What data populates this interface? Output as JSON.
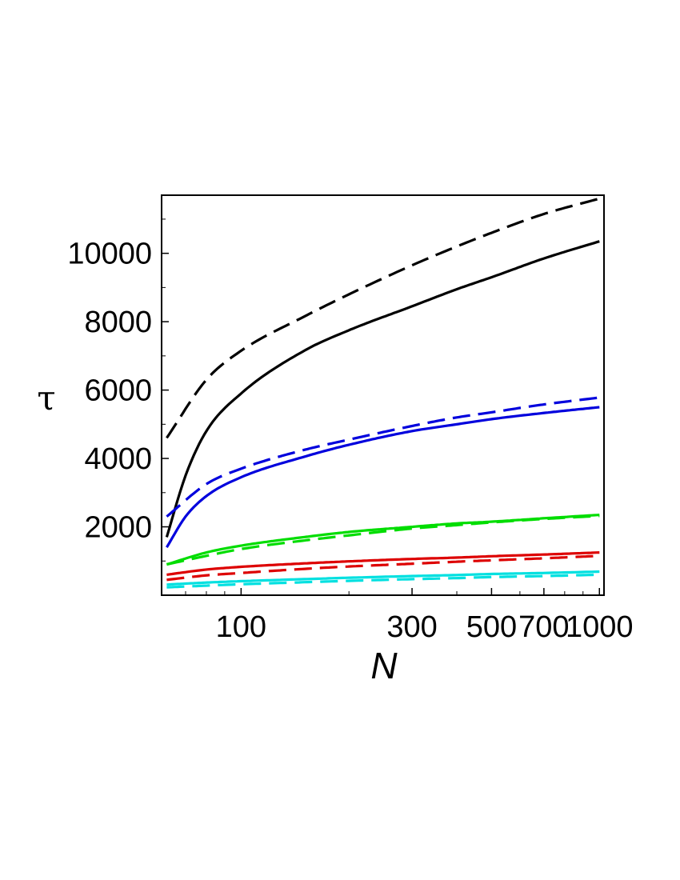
{
  "chart_data": {
    "type": "line",
    "title": "",
    "xlabel": "N",
    "ylabel": "τ",
    "xscale": "log",
    "xlim": [
      60,
      1030
    ],
    "ylim": [
      0,
      11700
    ],
    "x_ticks": [
      100,
      300,
      500,
      700,
      1000
    ],
    "y_ticks": [
      2000,
      4000,
      6000,
      8000,
      10000
    ],
    "grid": false,
    "legend": "none",
    "series": [
      {
        "color": "#000000",
        "style": "dashed",
        "x": [
          62,
          80,
          100,
          150,
          200,
          300,
          400,
          500,
          700,
          1000
        ],
        "y": [
          4600,
          6300,
          7150,
          8150,
          8800,
          9650,
          10200,
          10600,
          11150,
          11600
        ]
      },
      {
        "color": "#000000",
        "style": "solid",
        "x": [
          62,
          70,
          80,
          100,
          150,
          200,
          300,
          400,
          500,
          700,
          1000
        ],
        "y": [
          1700,
          3500,
          4800,
          5900,
          7150,
          7750,
          8450,
          8950,
          9300,
          9850,
          10350
        ]
      },
      {
        "color": "#0000dd",
        "style": "dashed",
        "x": [
          62,
          80,
          100,
          150,
          200,
          300,
          400,
          500,
          700,
          1000
        ],
        "y": [
          2300,
          3250,
          3700,
          4250,
          4550,
          4950,
          5200,
          5350,
          5580,
          5780
        ]
      },
      {
        "color": "#0000dd",
        "style": "solid",
        "x": [
          62,
          70,
          80,
          100,
          150,
          200,
          300,
          400,
          500,
          700,
          1000
        ],
        "y": [
          1400,
          2300,
          2900,
          3450,
          4050,
          4400,
          4800,
          5000,
          5150,
          5330,
          5500
        ]
      },
      {
        "color": "#00dd00",
        "style": "solid",
        "x": [
          62,
          80,
          100,
          150,
          200,
          300,
          400,
          500,
          700,
          1000
        ],
        "y": [
          900,
          1250,
          1450,
          1700,
          1850,
          2000,
          2100,
          2150,
          2250,
          2350
        ]
      },
      {
        "color": "#00dd00",
        "style": "dashed",
        "x": [
          62,
          80,
          100,
          150,
          200,
          300,
          400,
          500,
          700,
          1000
        ],
        "y": [
          900,
          1150,
          1350,
          1600,
          1750,
          1950,
          2050,
          2130,
          2230,
          2320
        ]
      },
      {
        "color": "#dd0000",
        "style": "solid",
        "x": [
          62,
          80,
          100,
          150,
          200,
          300,
          400,
          500,
          700,
          1000
        ],
        "y": [
          600,
          750,
          830,
          930,
          990,
          1060,
          1100,
          1140,
          1190,
          1250
        ]
      },
      {
        "color": "#dd0000",
        "style": "dashed",
        "x": [
          62,
          80,
          100,
          150,
          200,
          300,
          400,
          500,
          700,
          1000
        ],
        "y": [
          450,
          580,
          650,
          770,
          840,
          920,
          980,
          1020,
          1080,
          1150
        ]
      },
      {
        "color": "#00e0e0",
        "style": "solid",
        "x": [
          62,
          80,
          100,
          150,
          200,
          300,
          400,
          500,
          700,
          1000
        ],
        "y": [
          310,
          370,
          410,
          470,
          510,
          560,
          590,
          620,
          650,
          690
        ]
      },
      {
        "color": "#00e0e0",
        "style": "dashed",
        "x": [
          62,
          80,
          100,
          150,
          200,
          300,
          400,
          500,
          700,
          1000
        ],
        "y": [
          230,
          280,
          320,
          380,
          420,
          470,
          500,
          530,
          560,
          600
        ]
      }
    ]
  }
}
